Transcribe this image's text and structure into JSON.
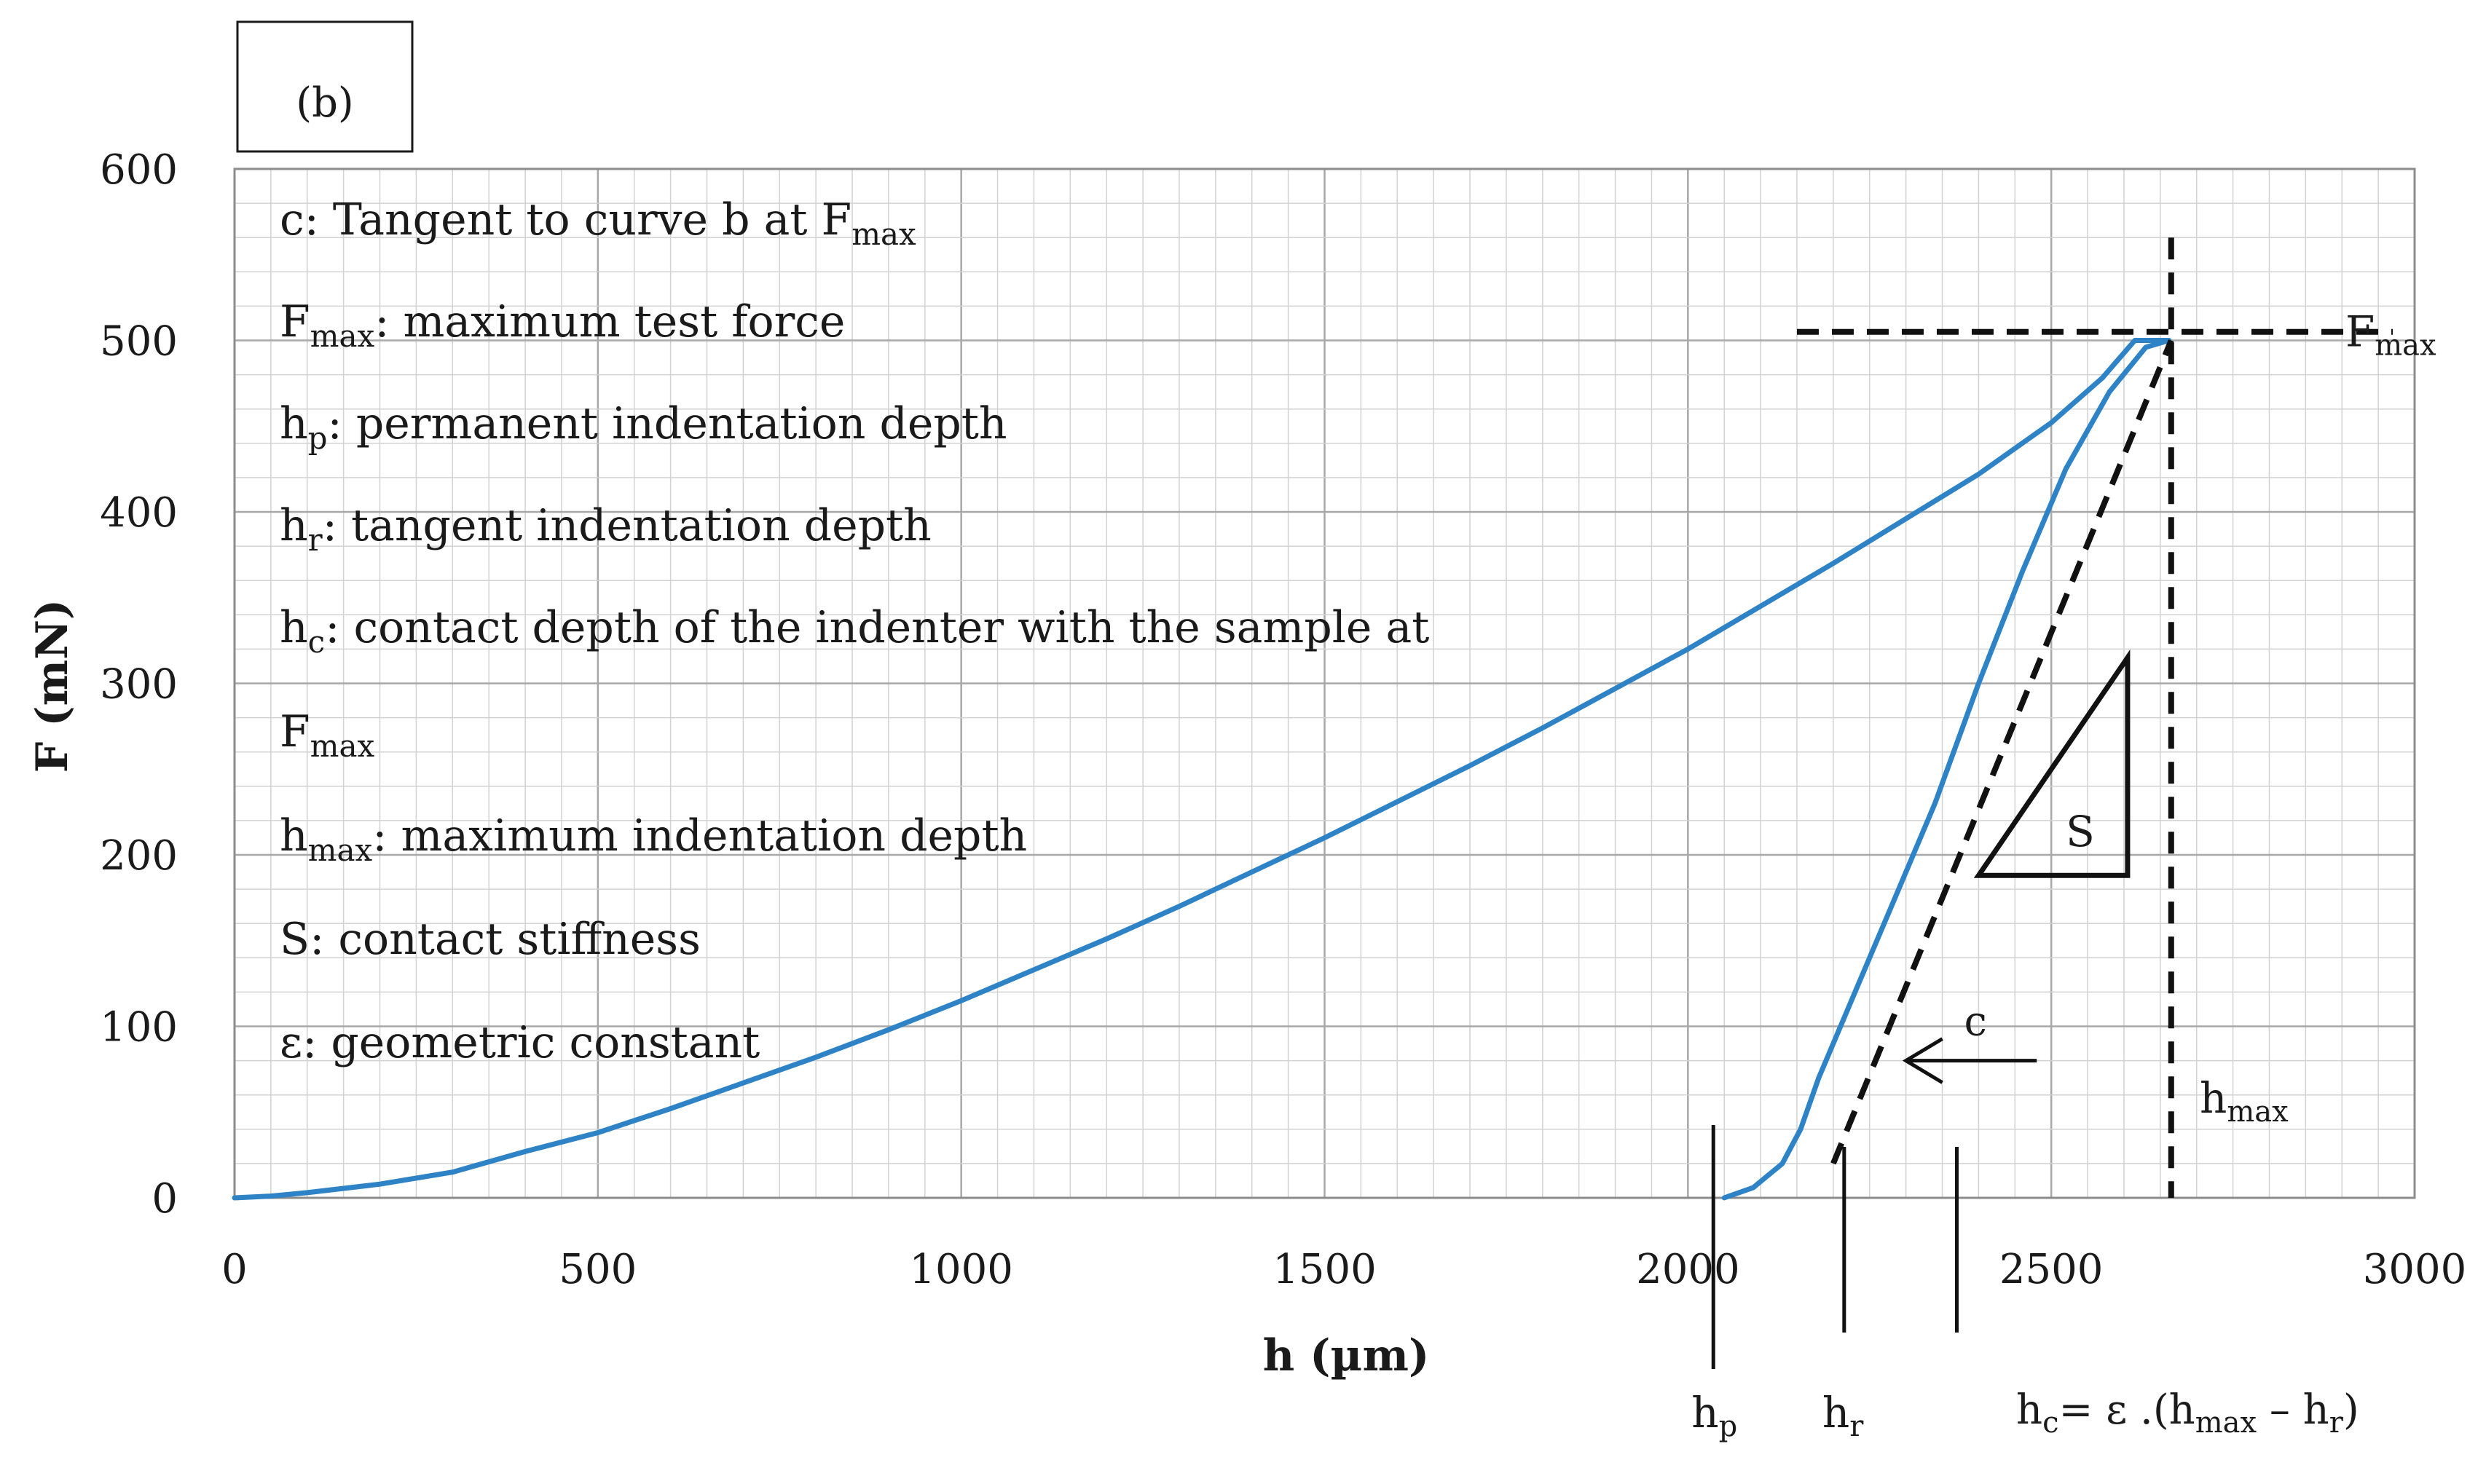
{
  "panel_label": "(b)",
  "chart_data": {
    "type": "line",
    "xlabel": "h (µm)",
    "ylabel": "F (mN)",
    "xlim": [
      0,
      3000
    ],
    "ylim": [
      0,
      600
    ],
    "x_ticks": [
      "0",
      "500",
      "1000",
      "1500",
      "2000",
      "2500",
      "3000"
    ],
    "y_ticks": [
      "0",
      "100",
      "200",
      "300",
      "400",
      "500",
      "600"
    ],
    "grid": true,
    "series": [
      {
        "curve": "loading",
        "color": "#2e83c6",
        "points": [
          [
            0,
            0
          ],
          [
            50,
            1
          ],
          [
            100,
            3
          ],
          [
            200,
            8
          ],
          [
            300,
            15
          ],
          [
            400,
            27
          ],
          [
            500,
            38
          ],
          [
            600,
            52
          ],
          [
            700,
            67
          ],
          [
            800,
            82
          ],
          [
            900,
            98
          ],
          [
            1000,
            115
          ],
          [
            1100,
            133
          ],
          [
            1200,
            151
          ],
          [
            1300,
            170
          ],
          [
            1400,
            190
          ],
          [
            1500,
            210
          ],
          [
            1600,
            231
          ],
          [
            1700,
            252
          ],
          [
            1800,
            274
          ],
          [
            1900,
            297
          ],
          [
            2000,
            320
          ],
          [
            2100,
            345
          ],
          [
            2200,
            370
          ],
          [
            2300,
            396
          ],
          [
            2400,
            422
          ],
          [
            2500,
            452
          ],
          [
            2570,
            478
          ],
          [
            2615,
            500
          ],
          [
            2660,
            500
          ]
        ]
      },
      {
        "curve": "unloading",
        "color": "#2e83c6",
        "points": [
          [
            2050,
            0
          ],
          [
            2090,
            6
          ],
          [
            2130,
            20
          ],
          [
            2155,
            40
          ],
          [
            2180,
            70
          ],
          [
            2230,
            120
          ],
          [
            2280,
            170
          ],
          [
            2340,
            230
          ],
          [
            2400,
            300
          ],
          [
            2460,
            365
          ],
          [
            2520,
            425
          ],
          [
            2580,
            470
          ],
          [
            2630,
            496
          ],
          [
            2662,
            500
          ]
        ]
      }
    ],
    "tangent_line": {
      "label": "c",
      "points": [
        [
          2200,
          20
        ],
        [
          2665,
          500
        ]
      ]
    },
    "fmax_line": {
      "label_main": "F",
      "label_sub": "max",
      "y": 505,
      "x_from": 2150,
      "x_to": 3000
    },
    "hmax_line": {
      "label_main": "h",
      "label_sub": "max",
      "x": 2665,
      "y_from": 0,
      "y_to": 560
    },
    "stiffness_triangle": {
      "label": "S",
      "points": [
        [
          2400,
          188
        ],
        [
          2605,
          315
        ],
        [
          2605,
          188
        ]
      ]
    },
    "arrow_c": {
      "label": "c",
      "from": [
        2480,
        80
      ],
      "to": [
        2300,
        80
      ]
    },
    "markers": [
      {
        "label_main": "h",
        "label_sub": "p",
        "x": 2035
      },
      {
        "label_main": "h",
        "label_sub": "r",
        "x": 2215
      },
      {
        "x": 2370
      }
    ],
    "formula": {
      "p1": "h",
      "p2": "c",
      "p3": "= ε .(h",
      "p4": "max",
      "p5": " – h",
      "p6": "r",
      "p7": ")"
    },
    "legend": [
      {
        "main": "c: Tangent to curve b at F",
        "sub": "max",
        "rest": ""
      },
      {
        "main": "F",
        "sub": "max",
        "rest": ": maximum test force"
      },
      {
        "main": "h",
        "sub": "p",
        "rest": ": permanent indentation depth"
      },
      {
        "main": "h",
        "sub": "r",
        "rest": ": tangent indentation depth"
      },
      {
        "main": "h",
        "sub": "c",
        "rest": ": contact depth of the indenter with the sample at"
      },
      {
        "main": "F",
        "sub": "max",
        "rest": ""
      },
      {
        "main": "h",
        "sub": "max",
        "rest": ": maximum indentation depth"
      },
      {
        "main": "S: contact stiffness",
        "sub": "",
        "rest": ""
      },
      {
        "main": "ε: geometric constant",
        "sub": "",
        "rest": ""
      }
    ]
  }
}
